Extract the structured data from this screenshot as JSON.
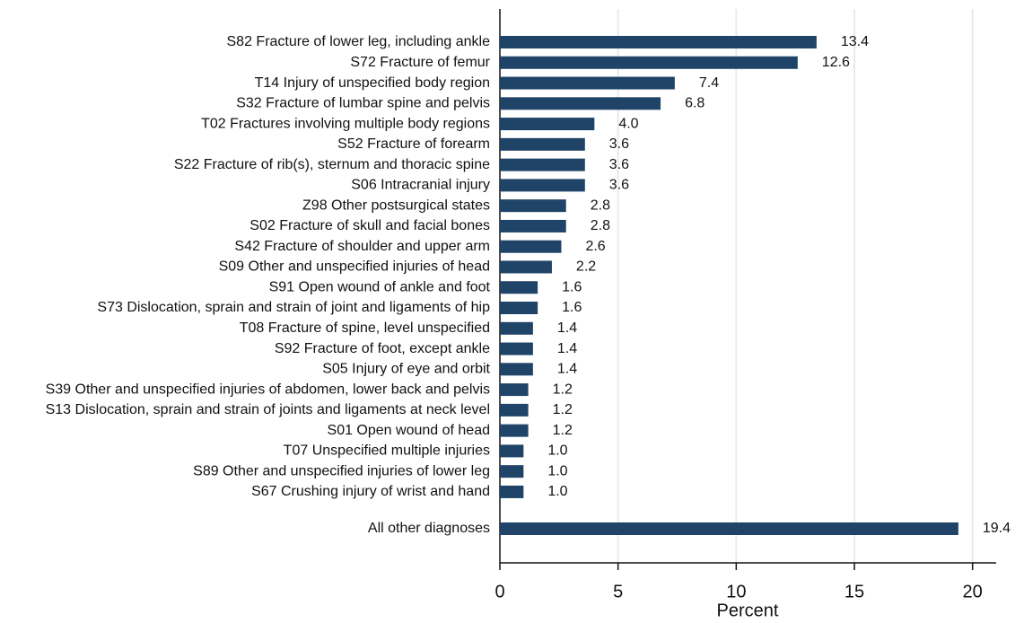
{
  "chart_data": {
    "type": "bar",
    "orientation": "horizontal",
    "categories": [
      "S82 Fracture of lower leg, including ankle",
      "S72 Fracture of femur",
      "T14 Injury of unspecified body region",
      "S32 Fracture of lumbar spine and pelvis",
      "T02 Fractures involving multiple body regions",
      "S52 Fracture of forearm",
      "S22 Fracture of rib(s), sternum and thoracic spine",
      "S06 Intracranial injury",
      "Z98 Other postsurgical states",
      "S02 Fracture of skull and facial bones",
      "S42 Fracture of shoulder and upper arm",
      "S09 Other and unspecified injuries of head",
      "S91 Open wound of ankle and foot",
      "S73 Dislocation, sprain and strain of joint and ligaments of hip",
      "T08 Fracture of spine, level unspecified",
      "S92 Fracture of foot, except ankle",
      "S05 Injury of eye and orbit",
      "S39 Other and unspecified injuries of abdomen, lower back and pelvis",
      "S13 Dislocation, sprain and strain of joints and ligaments at neck level",
      "S01 Open wound of head",
      "T07 Unspecified multiple injuries",
      "S89 Other and unspecified injuries of lower leg",
      "S67 Crushing injury of wrist and hand",
      "All other diagnoses"
    ],
    "values": [
      13.4,
      12.6,
      7.4,
      6.8,
      4,
      3.6,
      3.6,
      3.6,
      2.8,
      2.8,
      2.6,
      2.2,
      1.6,
      1.6,
      1.4,
      1.4,
      1.4,
      1.2,
      1.2,
      1.2,
      1,
      1,
      1,
      19.4
    ],
    "value_labels": [
      "13.4",
      "12.6",
      "7.4",
      "6.8",
      "4.0",
      "3.6",
      "3.6",
      "3.6",
      "2.8",
      "2.8",
      "2.6",
      "2.2",
      "1.6",
      "1.6",
      "1.4",
      "1.4",
      "1.4",
      "1.2",
      "1.2",
      "1.2",
      "1.0",
      "1.0",
      "1.0",
      "19.4"
    ],
    "color": "#1f4468",
    "xlabel": "Percent",
    "xlim": [
      0,
      21
    ],
    "xticks": [
      0,
      5,
      10,
      15,
      20
    ],
    "grid": true
  }
}
